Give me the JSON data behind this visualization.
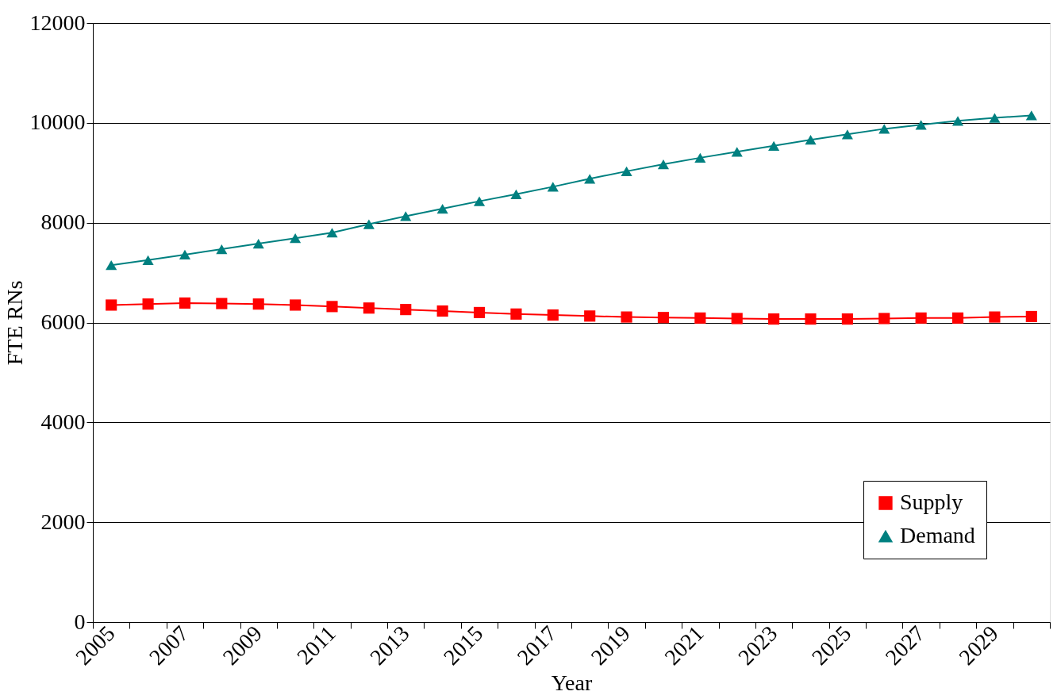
{
  "chart_data": {
    "type": "line",
    "xlabel": "Year",
    "ylabel": "FTE RNs",
    "categories": [
      "2005",
      null,
      "2007",
      null,
      "2009",
      null,
      "2011",
      null,
      "2013",
      null,
      "2015",
      null,
      "2017",
      null,
      "2019",
      null,
      "2021",
      null,
      "2023",
      null,
      "2025",
      null,
      "2027",
      null,
      "2029",
      null
    ],
    "series": [
      {
        "name": "Supply",
        "color": "#ff0000",
        "marker": "square",
        "values": [
          6350,
          6370,
          6390,
          6380,
          6370,
          6350,
          6320,
          6290,
          6260,
          6230,
          6200,
          6170,
          6150,
          6130,
          6110,
          6100,
          6090,
          6080,
          6070,
          6070,
          6070,
          6080,
          6090,
          6090,
          6110,
          6120
        ]
      },
      {
        "name": "Demand",
        "color": "#008080",
        "marker": "triangle",
        "values": [
          7150,
          7250,
          7360,
          7470,
          7580,
          7690,
          7800,
          7970,
          8130,
          8280,
          8430,
          8570,
          8720,
          8880,
          9030,
          9170,
          9300,
          9420,
          9540,
          9660,
          9770,
          9880,
          9960,
          10040,
          10100,
          10150
        ]
      }
    ],
    "ylim": [
      0,
      12000
    ],
    "yticks": [
      0,
      2000,
      4000,
      6000,
      8000,
      10000,
      12000
    ],
    "grid": "y",
    "legend": "bottom right",
    "line_style": "solid"
  }
}
